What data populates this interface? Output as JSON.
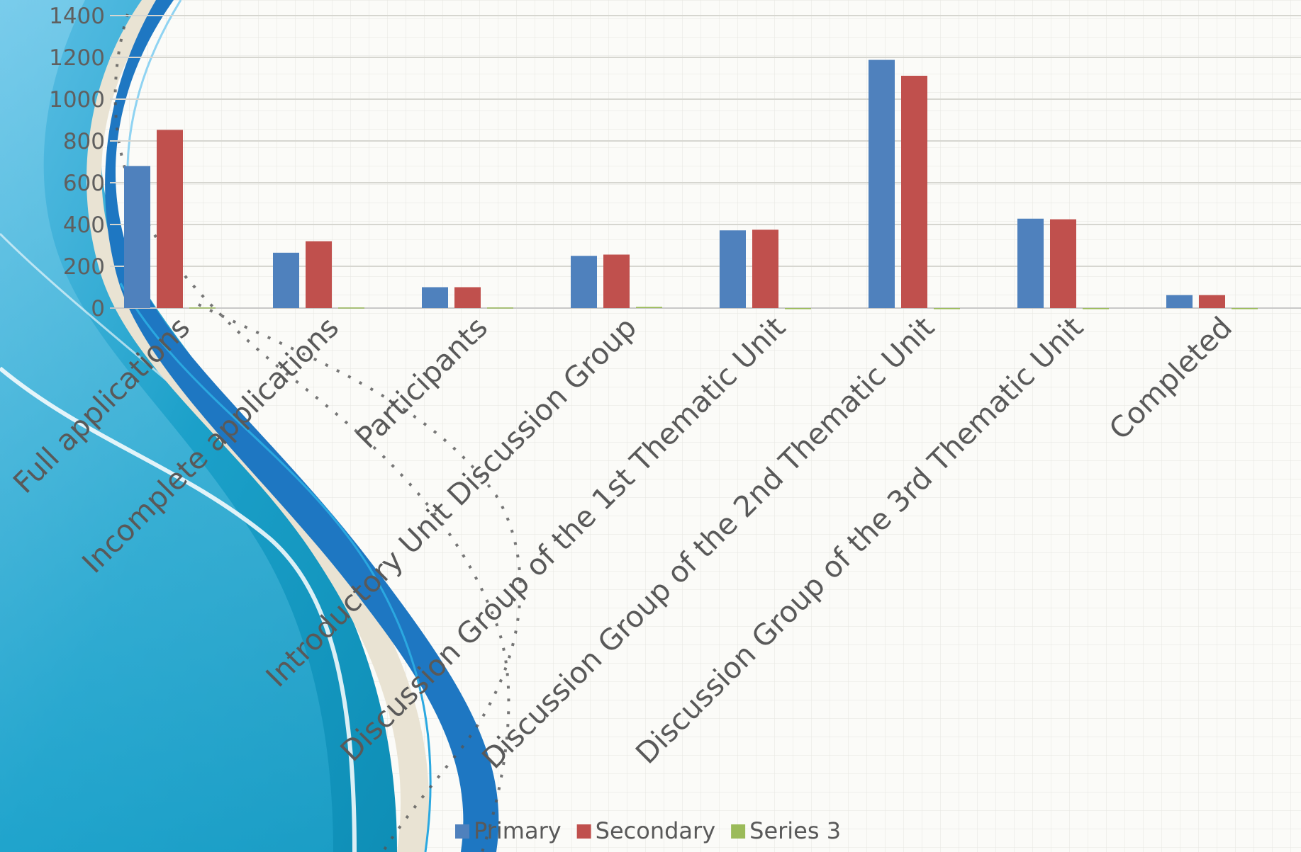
{
  "chart_data": {
    "type": "bar",
    "categories": [
      "Full applications",
      "Incomplete applications",
      "Participants",
      "Introductory Unit Discussion Group",
      "Discussion Group of the 1st Thematic Unit",
      "Discussion Group of the 2nd Thematic Unit",
      "Discussion Group of the 3rd Thematic Unit",
      "Completed"
    ],
    "series": [
      {
        "name": "Primary",
        "color": "#4f81bd",
        "values": [
          680,
          265,
          100,
          250,
          372,
          1188,
          428,
          62
        ]
      },
      {
        "name": "Secondary",
        "color": "#c0504d",
        "values": [
          853,
          320,
          100,
          256,
          375,
          1112,
          425,
          62
        ]
      },
      {
        "name": "Series 3",
        "color": "#9bbb59",
        "values": [
          3,
          3,
          3,
          6,
          0,
          0,
          0,
          0
        ]
      }
    ],
    "ylim": [
      0,
      1400
    ],
    "yticks": [
      "0",
      "200",
      "400",
      "600",
      "800",
      "1000",
      "1200",
      "1400"
    ],
    "grid": true,
    "legend_position": "bottom-center",
    "title": "",
    "xlabel": "",
    "ylabel": ""
  }
}
